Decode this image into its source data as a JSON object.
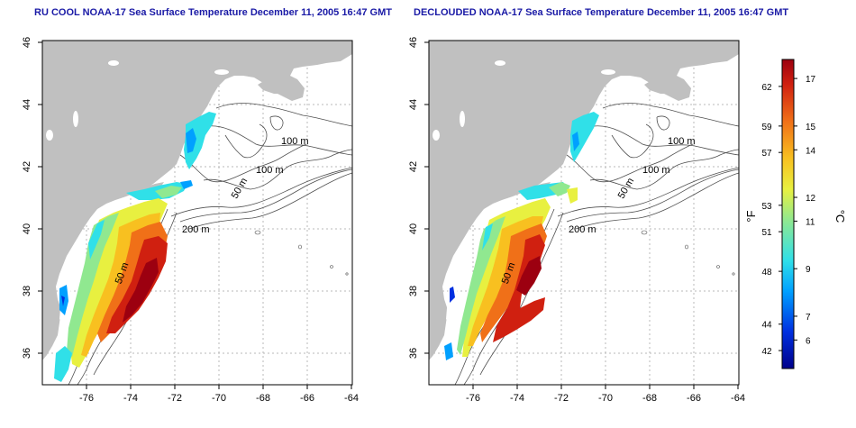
{
  "left_panel": {
    "title": "RU COOL NOAA-17 Sea Surface Temperature December 11, 2005 16:47 GMT"
  },
  "right_panel": {
    "title": "DECLOUDED NOAA-17 Sea Surface Temperature December 11, 2005 16:47 GMT"
  },
  "map": {
    "lon_ticks": [
      "-76",
      "-74",
      "-72",
      "-70",
      "-68",
      "-66",
      "-64"
    ],
    "lat_ticks": [
      "36",
      "38",
      "40",
      "42",
      "44",
      "46"
    ],
    "contour_labels": [
      "100 m",
      "100 m",
      "50 m",
      "200 m",
      "50 m"
    ]
  },
  "colorbar": {
    "f_label": "°F",
    "c_label": "°C",
    "f_ticks": [
      "62",
      "59",
      "57",
      "53",
      "51",
      "48",
      "44",
      "42"
    ],
    "c_ticks": [
      "17",
      "15",
      "14",
      "12",
      "11",
      "9",
      "7",
      "6"
    ],
    "colors": {
      "ramp": [
        "#00008a",
        "#0030e0",
        "#00a0ff",
        "#30e0e8",
        "#90e890",
        "#e8f040",
        "#f8c020",
        "#f07018",
        "#d02010",
        "#9c0010"
      ],
      "land": "#c0c0c0",
      "frame": "#000000"
    }
  }
}
